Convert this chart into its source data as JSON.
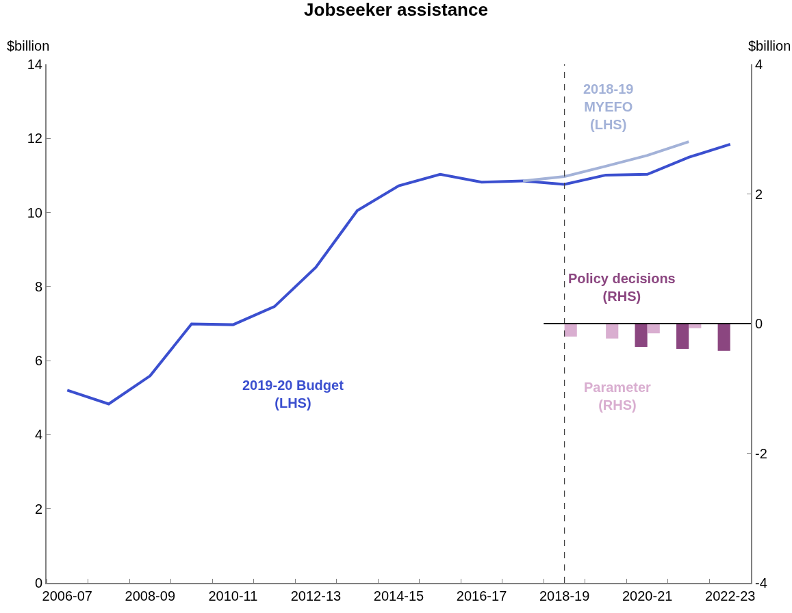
{
  "chart_data": {
    "type": "line",
    "title": "Jobseeker assistance",
    "ylabel": "$billion",
    "y2label": "$billion",
    "categories": [
      "2006-07",
      null,
      "2008-09",
      null,
      "2010-11",
      null,
      "2012-13",
      null,
      "2014-15",
      null,
      "2016-17",
      null,
      "2018-19",
      null,
      "2020-21",
      null,
      "2022-23"
    ],
    "series": [
      {
        "name": "2019-20 Budget\n(LHS)",
        "color": "#3b4fcf",
        "values": [
          5.2,
          4.83,
          5.59,
          6.99,
          6.97,
          7.46,
          8.52,
          10.05,
          10.72,
          11.03,
          10.82,
          10.85,
          10.76,
          11.01,
          11.03,
          11.49,
          11.84
        ]
      },
      {
        "name": "2018-19\nMYEFO\n(LHS)",
        "color": "#a3b2d8",
        "values": [
          null,
          null,
          null,
          null,
          null,
          null,
          null,
          null,
          null,
          null,
          null,
          10.85,
          10.97,
          11.25,
          11.54,
          11.91,
          null
        ]
      },
      {
        "name": "Policy decisions\n(RHS)",
        "type": "bar",
        "axis": "y2",
        "color": "#8b4680",
        "values": [
          null,
          null,
          null,
          null,
          null,
          null,
          null,
          null,
          null,
          null,
          null,
          null,
          0,
          0,
          -0.36,
          -0.39,
          -0.42
        ]
      },
      {
        "name": "Parameter\n(RHS)",
        "type": "bar",
        "axis": "y2",
        "color": "#d9aed0",
        "values": [
          null,
          null,
          null,
          null,
          null,
          null,
          null,
          null,
          null,
          null,
          null,
          null,
          -0.2,
          -0.23,
          -0.15,
          -0.07,
          0
        ]
      }
    ],
    "ylim": [
      0,
      14
    ],
    "yticks": [
      0,
      2,
      4,
      6,
      8,
      10,
      12,
      14
    ],
    "y2lim": [
      -4,
      4
    ],
    "y2ticks": [
      -4,
      -2,
      0,
      2,
      4
    ],
    "ref_lines": [
      {
        "axis": "x",
        "value": "2018-19",
        "color": "#404040",
        "line_style": "dashed"
      },
      {
        "axis": "y2",
        "value": 0,
        "color": "#000000",
        "line_style": "solid"
      }
    ]
  }
}
